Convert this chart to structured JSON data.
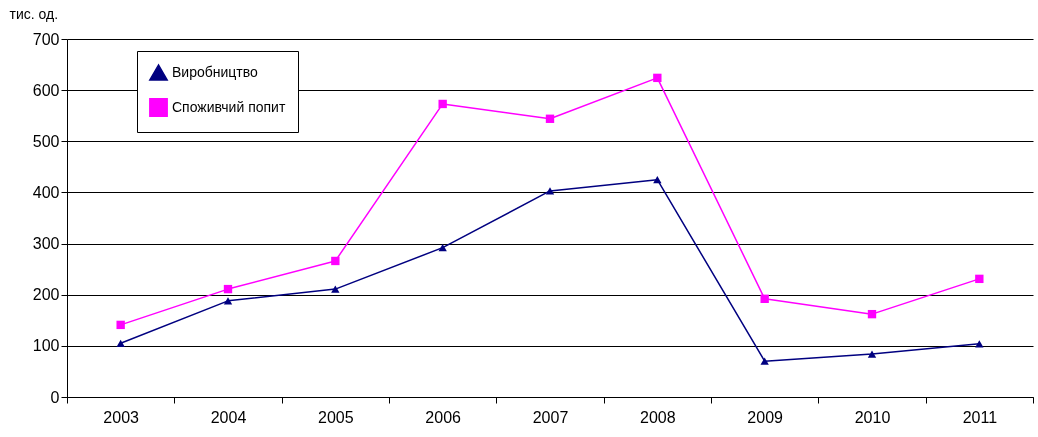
{
  "chart_data": {
    "type": "line",
    "ylabel": "тис. од.",
    "categories": [
      "2003",
      "2004",
      "2005",
      "2006",
      "2007",
      "2008",
      "2009",
      "2010",
      "2011"
    ],
    "series": [
      {
        "name": "Виробництво",
        "color": "#000080",
        "marker": "triangle",
        "values": [
          105,
          188,
          211,
          292,
          403,
          425,
          70,
          84,
          104
        ]
      },
      {
        "name": "Споживчий попит",
        "color": "#ff00ff",
        "marker": "square",
        "values": [
          141,
          211,
          266,
          573,
          544,
          624,
          192,
          162,
          231
        ]
      }
    ],
    "ylim": [
      0,
      700
    ],
    "yticks": [
      0,
      100,
      200,
      300,
      400,
      500,
      600,
      700
    ],
    "grid": "y",
    "legend": "top left",
    "line_style": "solid"
  }
}
